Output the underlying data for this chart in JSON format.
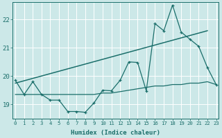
{
  "xlabel": "Humidex (Indice chaleur)",
  "background_color": "#cce8e8",
  "grid_color": "#ffffff",
  "line_color": "#1a6e6a",
  "x_values": [
    0,
    1,
    2,
    3,
    4,
    5,
    6,
    7,
    8,
    9,
    10,
    11,
    12,
    13,
    14,
    15,
    16,
    17,
    18,
    19,
    20,
    21,
    22,
    23
  ],
  "y_main": [
    19.85,
    19.35,
    19.8,
    19.35,
    19.15,
    19.15,
    18.75,
    18.75,
    18.72,
    19.05,
    19.5,
    19.48,
    19.85,
    20.5,
    20.48,
    19.48,
    21.85,
    21.6,
    22.5,
    21.55,
    21.3,
    21.05,
    20.3,
    19.7
  ],
  "y_flat": [
    19.35,
    19.35,
    19.35,
    19.35,
    19.35,
    19.35,
    19.35,
    19.35,
    19.35,
    19.35,
    19.4,
    19.4,
    19.45,
    19.5,
    19.55,
    19.6,
    19.65,
    19.65,
    19.7,
    19.7,
    19.75,
    19.75,
    19.8,
    19.7
  ],
  "trend_x": [
    0,
    22
  ],
  "trend_y": [
    19.75,
    21.6
  ],
  "ylim": [
    18.5,
    22.6
  ],
  "yticks": [
    19,
    20,
    21,
    22
  ],
  "xticks": [
    0,
    1,
    2,
    3,
    4,
    5,
    6,
    7,
    8,
    9,
    10,
    11,
    12,
    13,
    14,
    15,
    16,
    17,
    18,
    19,
    20,
    21,
    22,
    23
  ],
  "xlim": [
    -0.3,
    23.3
  ]
}
